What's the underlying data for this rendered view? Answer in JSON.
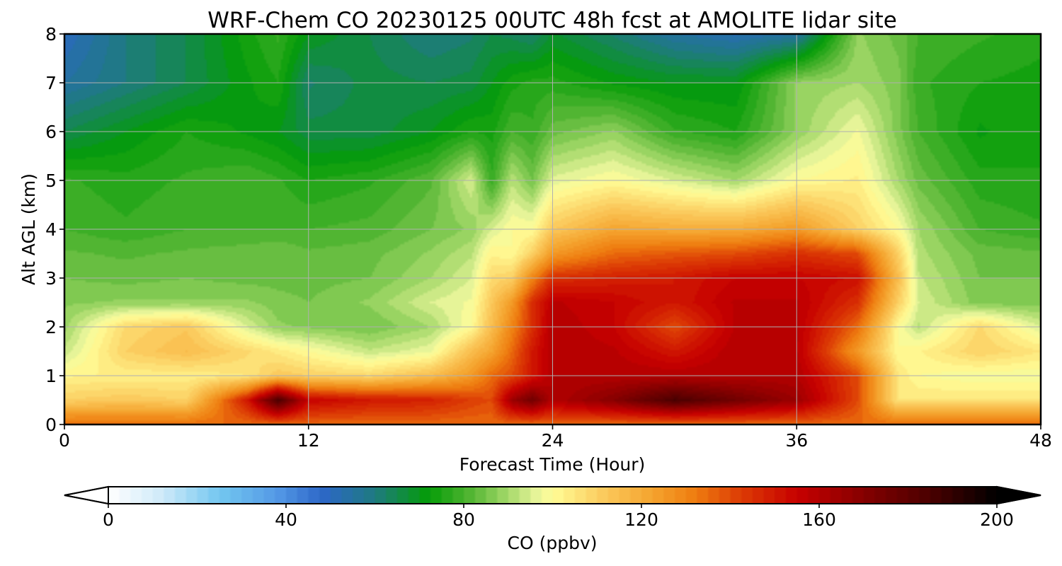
{
  "chart_data": {
    "type": "heatmap",
    "title": "WRF-Chem CO  20230125 00UTC 48h fcst at AMOLITE lidar site",
    "xlabel": "Forecast Time (Hour)",
    "ylabel": "Alt AGL (km)",
    "xlim": [
      0,
      48
    ],
    "ylim": [
      0,
      8
    ],
    "xticks": [
      "0",
      "12",
      "24",
      "36",
      "48"
    ],
    "yticks": [
      "0",
      "1",
      "2",
      "3",
      "4",
      "5",
      "6",
      "7",
      "8"
    ],
    "grid": true,
    "x_hours": [
      0,
      3,
      6,
      9,
      10.5,
      12,
      15,
      18,
      20,
      21,
      22,
      23,
      24,
      27,
      30,
      33,
      36,
      39,
      41,
      42,
      45,
      48
    ],
    "y_km": [
      0,
      0.5,
      1,
      1.5,
      2,
      2.5,
      3,
      3.5,
      4,
      5,
      6,
      7,
      8
    ],
    "z_ppbv": [
      [
        135,
        135,
        135,
        135,
        135,
        135,
        135,
        135,
        135,
        135,
        135,
        135,
        135,
        135,
        135,
        135,
        135,
        135,
        135,
        135,
        135,
        135
      ],
      [
        110,
        112,
        110,
        150,
        185,
        155,
        150,
        148,
        142,
        140,
        165,
        175,
        160,
        170,
        185,
        175,
        165,
        140,
        105,
        105,
        105,
        105
      ],
      [
        102,
        103,
        103,
        105,
        112,
        110,
        108,
        115,
        125,
        135,
        140,
        150,
        160,
        160,
        160,
        160,
        160,
        140,
        105,
        100,
        98,
        98
      ],
      [
        93,
        110,
        115,
        108,
        104,
        100,
        93,
        97,
        115,
        122,
        135,
        150,
        160,
        158,
        150,
        160,
        158,
        125,
        100,
        102,
        110,
        105
      ],
      [
        89,
        108,
        112,
        95,
        88,
        87,
        85,
        90,
        100,
        115,
        130,
        145,
        160,
        155,
        140,
        158,
        158,
        135,
        100,
        92,
        108,
        95
      ],
      [
        87,
        88,
        88,
        88,
        86,
        85,
        88,
        95,
        98,
        112,
        125,
        145,
        158,
        155,
        150,
        158,
        158,
        145,
        110,
        95,
        86,
        86
      ],
      [
        85,
        84,
        85,
        84,
        84,
        84,
        85,
        90,
        95,
        108,
        110,
        130,
        145,
        148,
        150,
        155,
        155,
        152,
        115,
        93,
        85,
        85
      ],
      [
        83,
        82,
        83,
        84,
        85,
        83,
        84,
        88,
        92,
        102,
        100,
        110,
        125,
        135,
        138,
        140,
        145,
        140,
        110,
        91,
        84,
        83
      ],
      [
        80,
        78,
        80,
        80,
        80,
        80,
        81,
        85,
        88,
        95,
        100,
        100,
        112,
        122,
        120,
        120,
        125,
        110,
        100,
        90,
        80,
        78
      ],
      [
        78,
        76,
        78,
        80,
        78,
        75,
        77,
        82,
        95,
        78,
        92,
        85,
        96,
        100,
        95,
        90,
        100,
        103,
        90,
        84,
        76,
        75
      ],
      [
        65,
        70,
        75,
        72,
        70,
        66,
        66,
        70,
        75,
        74,
        80,
        78,
        84,
        88,
        78,
        75,
        88,
        98,
        86,
        80,
        72,
        75
      ],
      [
        55,
        60,
        65,
        72,
        75,
        62,
        66,
        65,
        66,
        70,
        74,
        76,
        76,
        72,
        70,
        70,
        88,
        90,
        86,
        78,
        75,
        74
      ],
      [
        50,
        60,
        65,
        74,
        78,
        70,
        65,
        60,
        62,
        65,
        64,
        62,
        68,
        62,
        55,
        52,
        55,
        88,
        84,
        80,
        78,
        76
      ]
    ],
    "colorbar": {
      "label": "CO  (ppbv)",
      "range": [
        0,
        200
      ],
      "ticks": [
        "0",
        "40",
        "80",
        "120",
        "160",
        "200"
      ],
      "extend": "both",
      "stops": [
        {
          "v": 0,
          "color": "#ffffff"
        },
        {
          "v": 12,
          "color": "#cfeaf9"
        },
        {
          "v": 25,
          "color": "#73c7f0"
        },
        {
          "v": 38,
          "color": "#5499e6"
        },
        {
          "v": 48,
          "color": "#2d67c8"
        },
        {
          "v": 60,
          "color": "#1f7a80"
        },
        {
          "v": 72,
          "color": "#049c07"
        },
        {
          "v": 82,
          "color": "#57b735"
        },
        {
          "v": 90,
          "color": "#a5d96a"
        },
        {
          "v": 97,
          "color": "#eef79e"
        },
        {
          "v": 100,
          "color": "#fffc96"
        },
        {
          "v": 112,
          "color": "#fbc85a"
        },
        {
          "v": 122,
          "color": "#f5a530"
        },
        {
          "v": 132,
          "color": "#ef7d10"
        },
        {
          "v": 142,
          "color": "#dd3d05"
        },
        {
          "v": 155,
          "color": "#c70000"
        },
        {
          "v": 170,
          "color": "#850000"
        },
        {
          "v": 185,
          "color": "#4a0000"
        },
        {
          "v": 200,
          "color": "#000000"
        }
      ]
    }
  }
}
